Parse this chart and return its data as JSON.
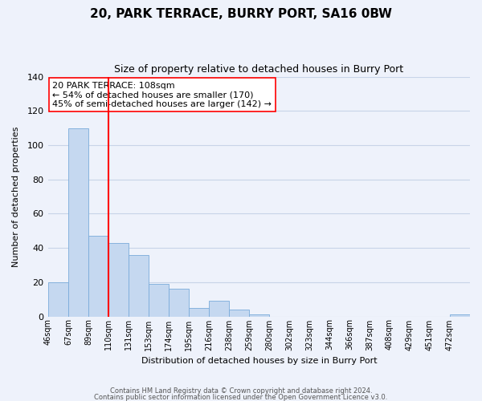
{
  "title": "20, PARK TERRACE, BURRY PORT, SA16 0BW",
  "subtitle": "Size of property relative to detached houses in Burry Port",
  "xlabel": "Distribution of detached houses by size in Burry Port",
  "ylabel": "Number of detached properties",
  "bar_color": "#c5d8f0",
  "bar_edge_color": "#7aabda",
  "background_color": "#eef2fb",
  "grid_color": "#c8d4e8",
  "bin_labels": [
    "46sqm",
    "67sqm",
    "89sqm",
    "110sqm",
    "131sqm",
    "153sqm",
    "174sqm",
    "195sqm",
    "216sqm",
    "238sqm",
    "259sqm",
    "280sqm",
    "302sqm",
    "323sqm",
    "344sqm",
    "366sqm",
    "387sqm",
    "408sqm",
    "429sqm",
    "451sqm",
    "472sqm"
  ],
  "bar_heights": [
    20,
    110,
    47,
    43,
    36,
    19,
    16,
    5,
    9,
    4,
    1,
    0,
    0,
    0,
    0,
    0,
    0,
    0,
    0,
    0,
    1
  ],
  "ylim": [
    0,
    140
  ],
  "yticks": [
    0,
    20,
    40,
    60,
    80,
    100,
    120,
    140
  ],
  "property_line_x": 3.0,
  "property_line_label": "20 PARK TERRACE: 108sqm",
  "annotation_line1": "← 54% of detached houses are smaller (170)",
  "annotation_line2": "45% of semi-detached houses are larger (142) →",
  "footer_line1": "Contains HM Land Registry data © Crown copyright and database right 2024.",
  "footer_line2": "Contains public sector information licensed under the Open Government Licence v3.0."
}
